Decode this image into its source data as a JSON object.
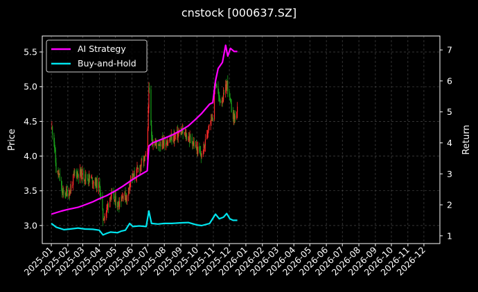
{
  "chart_data": {
    "type": "line",
    "title": "cnstock [000637.SZ]",
    "xlabel": "",
    "ylabel": "Price",
    "ylabel_right": "Return",
    "xlim": [
      "2024-12-15",
      "2026-12-31"
    ],
    "ylim": [
      2.74,
      5.73
    ],
    "ylim_right": [
      0.75,
      7.45
    ],
    "yticks": [
      3.0,
      3.5,
      4.0,
      4.5,
      5.0,
      5.5
    ],
    "yticks_right": [
      1,
      2,
      3,
      4,
      5,
      6,
      7
    ],
    "x_ticks": [
      "2025-01",
      "2025-02",
      "2025-03",
      "2025-04",
      "2025-05",
      "2025-06",
      "2025-07",
      "2025-08",
      "2025-09",
      "2025-10",
      "2025-11",
      "2025-12",
      "2026-01",
      "2026-02",
      "2026-03",
      "2026-04",
      "2026-05",
      "2026-06",
      "2026-07",
      "2026-08",
      "2026-09",
      "2026-10",
      "2026-11",
      "2026-12"
    ],
    "grid": true,
    "legend_position": "top-left",
    "colors": {
      "background": "#000000",
      "ai_strategy": "#ff00ff",
      "buy_and_hold": "#00e5ee",
      "candle_up": "#ff2a2a",
      "candle_down": "#1aa01a",
      "grid": "#555555",
      "text": "#ffffff"
    },
    "price_path": [
      [
        "2025-01-02",
        4.4
      ],
      [
        "2025-01-06",
        4.25
      ],
      [
        "2025-01-10",
        3.8
      ],
      [
        "2025-01-16",
        3.7
      ],
      [
        "2025-01-22",
        3.45
      ],
      [
        "2025-02-05",
        3.5
      ],
      [
        "2025-02-14",
        3.75
      ],
      [
        "2025-02-24",
        3.75
      ],
      [
        "2025-03-05",
        3.7
      ],
      [
        "2025-03-14",
        3.68
      ],
      [
        "2025-03-25",
        3.62
      ],
      [
        "2025-04-02",
        3.55
      ],
      [
        "2025-04-08",
        3.1
      ],
      [
        "2025-04-14",
        3.2
      ],
      [
        "2025-04-22",
        3.45
      ],
      [
        "2025-05-06",
        3.3
      ],
      [
        "2025-05-15",
        3.45
      ],
      [
        "2025-05-23",
        3.4
      ],
      [
        "2025-05-30",
        3.7
      ],
      [
        "2025-06-06",
        3.7
      ],
      [
        "2025-06-16",
        3.85
      ],
      [
        "2025-06-24",
        3.95
      ],
      [
        "2025-06-30",
        4.0
      ],
      [
        "2025-07-03",
        5.05
      ],
      [
        "2025-07-08",
        4.25
      ],
      [
        "2025-07-16",
        4.18
      ],
      [
        "2025-07-28",
        4.2
      ],
      [
        "2025-08-08",
        4.22
      ],
      [
        "2025-08-20",
        4.28
      ],
      [
        "2025-09-01",
        4.35
      ],
      [
        "2025-09-10",
        4.3
      ],
      [
        "2025-09-22",
        4.22
      ],
      [
        "2025-10-01",
        4.1
      ],
      [
        "2025-10-10",
        4.0
      ],
      [
        "2025-10-17",
        4.2
      ],
      [
        "2025-10-24",
        4.5
      ],
      [
        "2025-10-31",
        4.6
      ],
      [
        "2025-11-05",
        5.1
      ],
      [
        "2025-11-12",
        4.8
      ],
      [
        "2025-11-20",
        4.85
      ],
      [
        "2025-11-27",
        5.05
      ],
      [
        "2025-12-04",
        4.7
      ],
      [
        "2025-12-10",
        4.55
      ],
      [
        "2025-12-16",
        4.65
      ]
    ],
    "series": [
      {
        "name": "AI Strategy",
        "axis": "right",
        "points": [
          [
            "2025-01-01",
            1.7
          ],
          [
            "2025-01-20",
            1.8
          ],
          [
            "2025-02-01",
            1.85
          ],
          [
            "2025-02-20",
            1.92
          ],
          [
            "2025-03-05",
            2.0
          ],
          [
            "2025-03-20",
            2.1
          ],
          [
            "2025-04-01",
            2.2
          ],
          [
            "2025-04-15",
            2.3
          ],
          [
            "2025-05-01",
            2.45
          ],
          [
            "2025-05-15",
            2.6
          ],
          [
            "2025-06-01",
            2.8
          ],
          [
            "2025-06-15",
            2.95
          ],
          [
            "2025-06-30",
            3.1
          ],
          [
            "2025-07-03",
            3.9
          ],
          [
            "2025-07-10",
            4.0
          ],
          [
            "2025-08-01",
            4.15
          ],
          [
            "2025-08-15",
            4.25
          ],
          [
            "2025-09-01",
            4.4
          ],
          [
            "2025-09-15",
            4.55
          ],
          [
            "2025-09-28",
            4.75
          ],
          [
            "2025-10-10",
            4.95
          ],
          [
            "2025-10-25",
            5.25
          ],
          [
            "2025-10-31",
            5.3
          ],
          [
            "2025-11-05",
            6.0
          ],
          [
            "2025-11-10",
            6.4
          ],
          [
            "2025-11-18",
            6.6
          ],
          [
            "2025-11-24",
            7.15
          ],
          [
            "2025-11-28",
            6.8
          ],
          [
            "2025-12-03",
            7.05
          ],
          [
            "2025-12-10",
            6.95
          ],
          [
            "2025-12-16",
            6.95
          ]
        ]
      },
      {
        "name": "Buy-and-Hold",
        "axis": "right",
        "points": [
          [
            "2025-01-01",
            1.4
          ],
          [
            "2025-01-10",
            1.28
          ],
          [
            "2025-01-25",
            1.2
          ],
          [
            "2025-02-05",
            1.22
          ],
          [
            "2025-02-20",
            1.25
          ],
          [
            "2025-03-05",
            1.22
          ],
          [
            "2025-03-20",
            1.21
          ],
          [
            "2025-04-01",
            1.18
          ],
          [
            "2025-04-08",
            1.03
          ],
          [
            "2025-04-15",
            1.08
          ],
          [
            "2025-04-22",
            1.12
          ],
          [
            "2025-05-05",
            1.1
          ],
          [
            "2025-05-12",
            1.15
          ],
          [
            "2025-05-20",
            1.18
          ],
          [
            "2025-05-28",
            1.4
          ],
          [
            "2025-06-03",
            1.3
          ],
          [
            "2025-06-15",
            1.32
          ],
          [
            "2025-06-28",
            1.3
          ],
          [
            "2025-07-03",
            1.8
          ],
          [
            "2025-07-08",
            1.4
          ],
          [
            "2025-07-20",
            1.38
          ],
          [
            "2025-08-01",
            1.4
          ],
          [
            "2025-08-15",
            1.4
          ],
          [
            "2025-09-01",
            1.42
          ],
          [
            "2025-09-15",
            1.43
          ],
          [
            "2025-10-01",
            1.35
          ],
          [
            "2025-10-10",
            1.33
          ],
          [
            "2025-10-25",
            1.4
          ],
          [
            "2025-11-05",
            1.7
          ],
          [
            "2025-11-12",
            1.55
          ],
          [
            "2025-11-20",
            1.6
          ],
          [
            "2025-11-26",
            1.72
          ],
          [
            "2025-12-02",
            1.55
          ],
          [
            "2025-12-08",
            1.5
          ],
          [
            "2025-12-16",
            1.5
          ]
        ]
      }
    ]
  }
}
